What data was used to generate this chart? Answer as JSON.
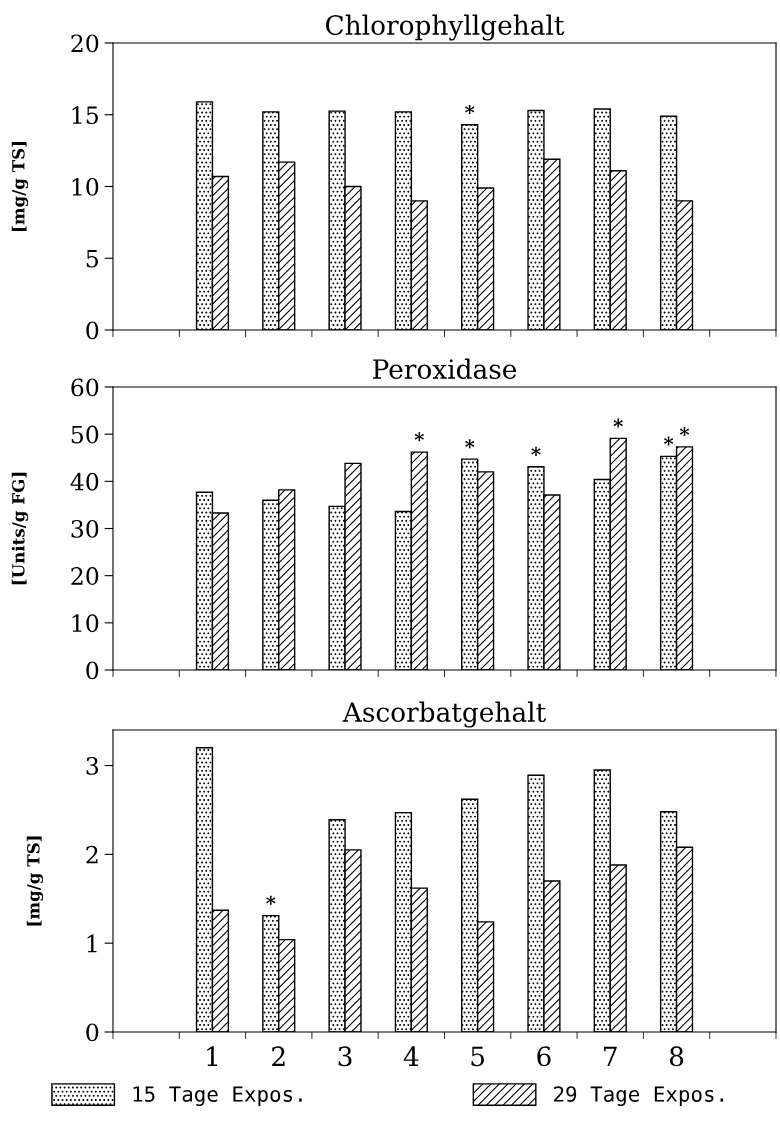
{
  "chart_data": [
    {
      "type": "bar",
      "title": "Chlorophyllgehalt",
      "ylabel": "[mg/g TS]",
      "categories": [
        "1",
        "2",
        "3",
        "4",
        "5",
        "6",
        "7",
        "8"
      ],
      "series": [
        {
          "color": "#000000",
          "values": [
            15.9,
            15.2,
            15.25,
            15.2,
            14.3,
            15.3,
            15.4,
            14.9
          ]
        },
        {
          "color": "#000000",
          "values": [
            10.7,
            11.7,
            10.0,
            9.0,
            9.9,
            11.9,
            11.1,
            9.0
          ]
        }
      ],
      "ylim": [
        0,
        20
      ],
      "yticks": [
        0,
        5,
        10,
        15,
        20
      ],
      "tick_labels": "y",
      "grid": false,
      "legend": false,
      "annotations": [
        {
          "text": "*",
          "x": "5",
          "y": 14.3
        }
      ]
    },
    {
      "type": "bar",
      "title": "Peroxidase",
      "ylabel": "[Units/g FG]",
      "categories": [
        "1",
        "2",
        "3",
        "4",
        "5",
        "6",
        "7",
        "8"
      ],
      "series": [
        {
          "color": "#000000",
          "values": [
            37.7,
            36.0,
            34.7,
            33.6,
            44.7,
            43.1,
            40.4,
            45.3
          ]
        },
        {
          "color": "#000000",
          "values": [
            33.3,
            38.2,
            43.8,
            46.2,
            42.0,
            37.1,
            49.1,
            47.3
          ]
        }
      ],
      "ylim": [
        0,
        60
      ],
      "yticks": [
        0,
        10,
        20,
        30,
        40,
        50,
        60
      ],
      "tick_labels": "y",
      "grid": false,
      "legend": false,
      "annotations": [
        {
          "text": "*",
          "x": "4",
          "y": 46.2
        },
        {
          "text": "*",
          "x": "5",
          "y": 44.7
        },
        {
          "text": "*",
          "x": "6",
          "y": 43.1
        },
        {
          "text": "*",
          "x": "7",
          "y": 49.1
        },
        {
          "text": "*",
          "x": "8",
          "y": 45.3
        },
        {
          "text": "*",
          "x": "8",
          "y": 47.3
        }
      ]
    },
    {
      "type": "bar",
      "title": "Ascorbatgehalt",
      "ylabel": "[mg/g TS]",
      "categories": [
        "1",
        "2",
        "3",
        "4",
        "5",
        "6",
        "7",
        "8"
      ],
      "series": [
        {
          "name": "15 Tage Expos.",
          "color": "#000000",
          "values": [
            3.2,
            1.31,
            2.39,
            2.47,
            2.62,
            2.89,
            2.95,
            2.48
          ]
        },
        {
          "name": "29 Tage Expos.",
          "color": "#000000",
          "values": [
            1.37,
            1.04,
            2.05,
            1.62,
            1.24,
            1.7,
            1.88,
            2.08
          ]
        }
      ],
      "ylim": [
        0,
        3.4
      ],
      "yticks": [
        0,
        1,
        2,
        3
      ],
      "grid": false,
      "legend": "bottom",
      "annotations": [
        {
          "text": "*",
          "x": "2",
          "y": 1.31
        }
      ]
    }
  ]
}
